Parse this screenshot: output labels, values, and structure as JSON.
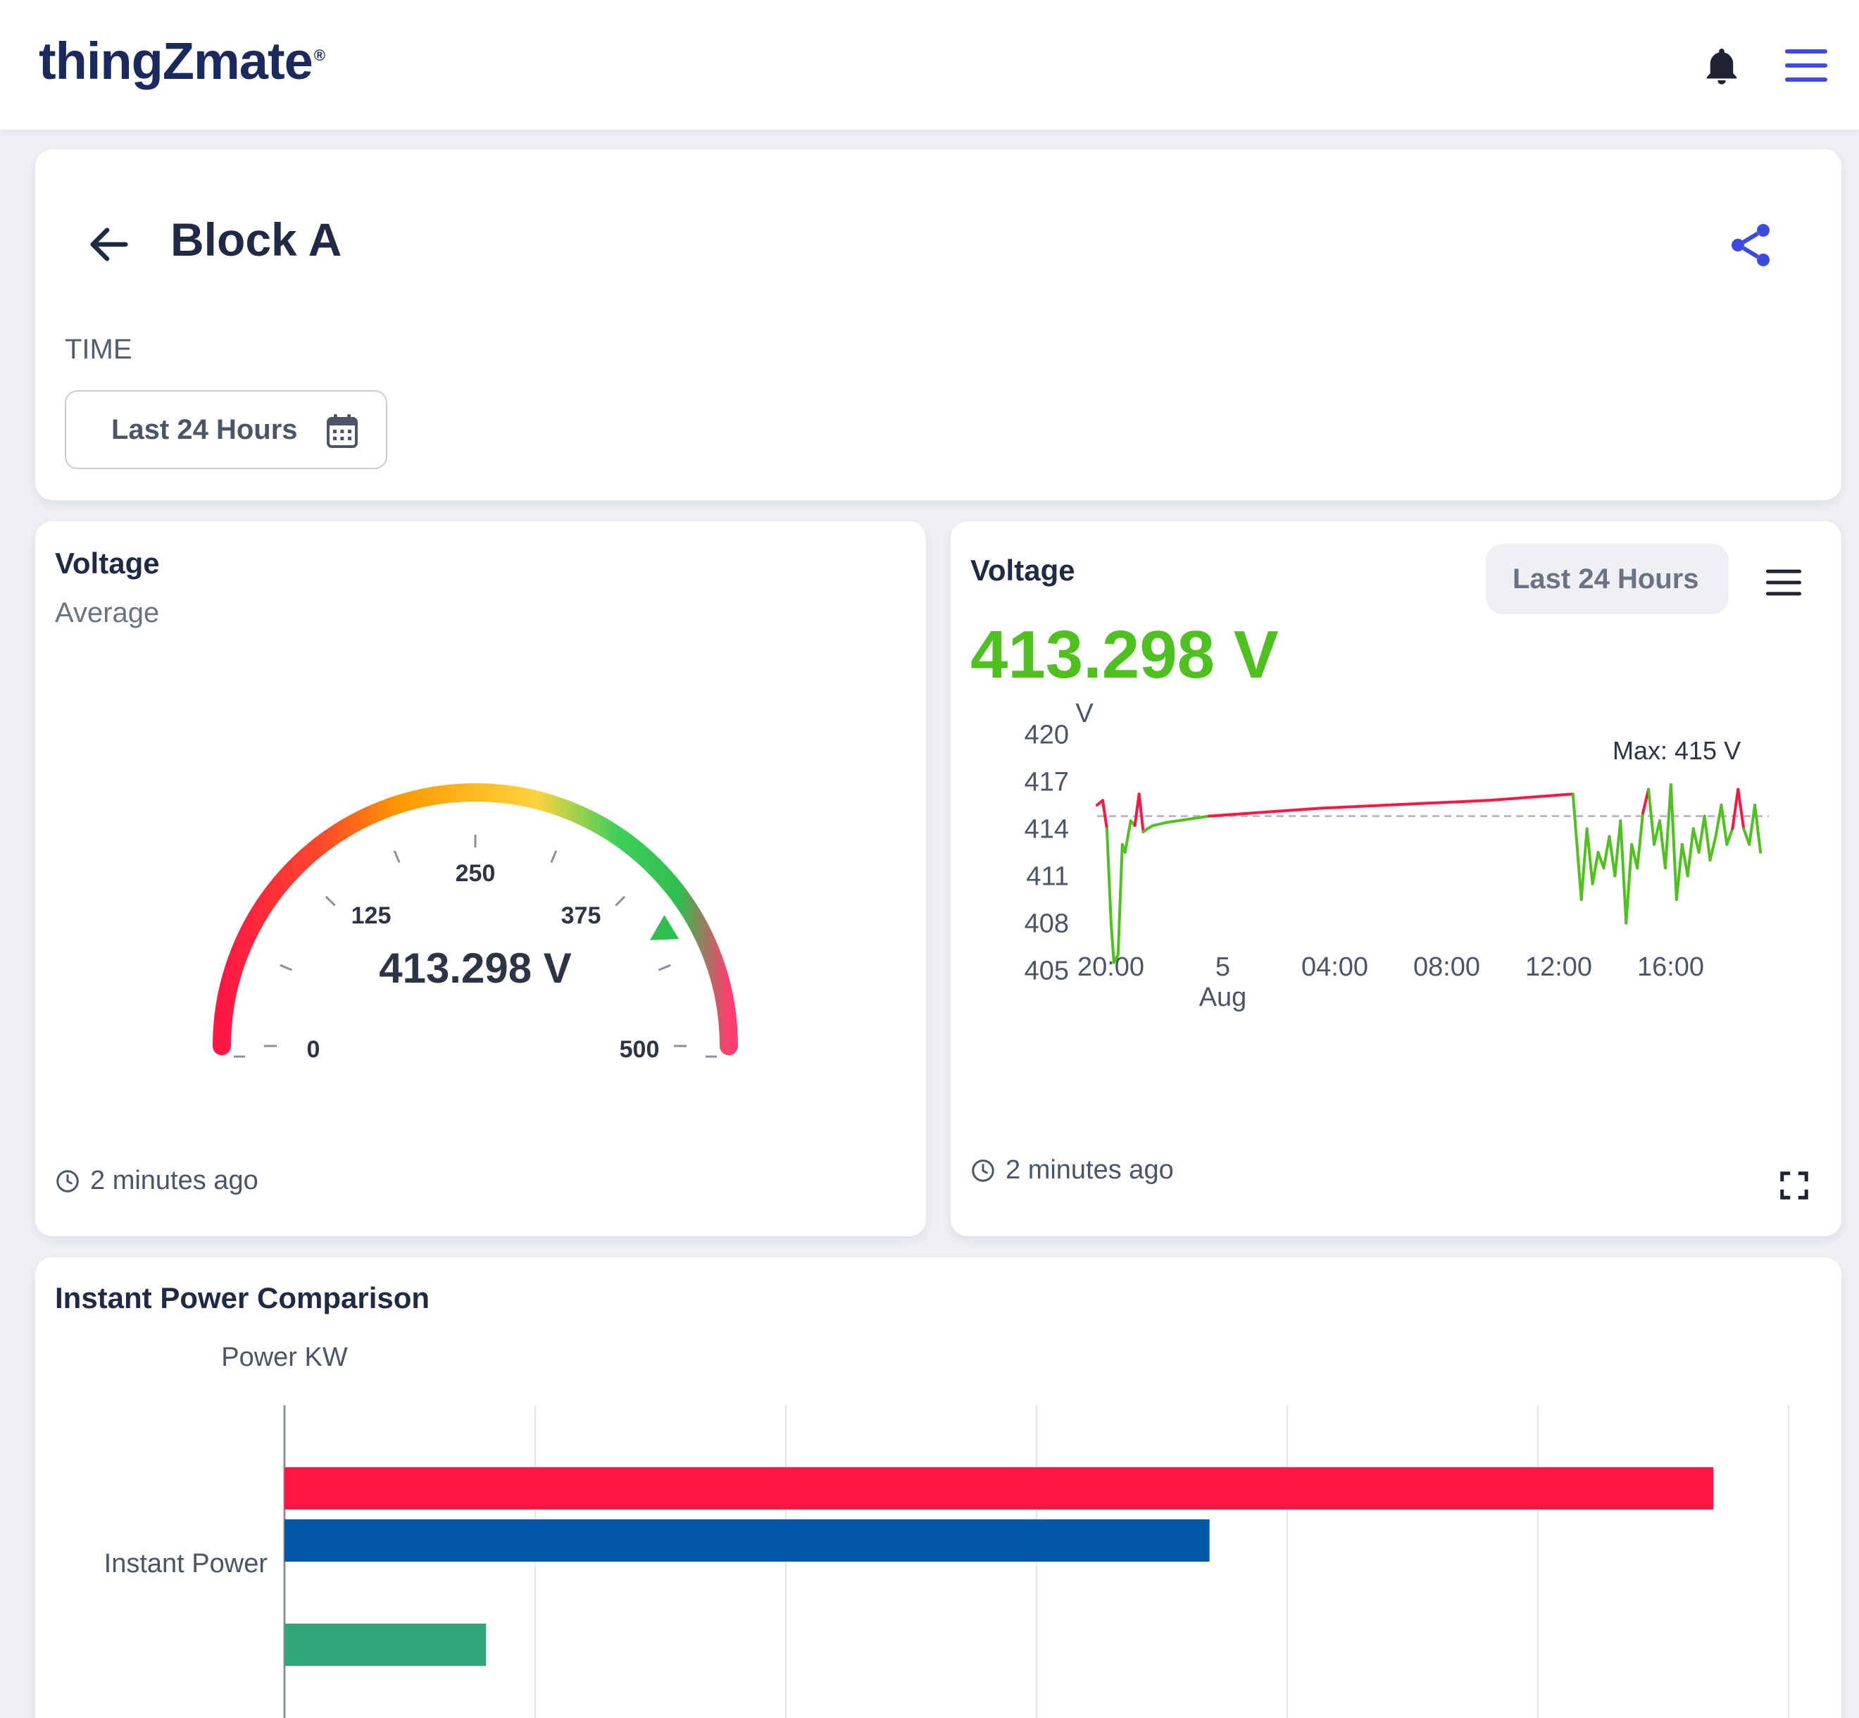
{
  "app": {
    "logo": "thingZmate",
    "logo_mark": "®"
  },
  "header": {
    "title": "Block A",
    "time_label": "TIME",
    "time_range": "Last 24 Hours"
  },
  "colors": {
    "accent": "#3d4ce0",
    "green": "#4fc11f",
    "red": "#ff1744",
    "blue": "#0059a8",
    "teal": "#31a67b"
  },
  "gauge_card": {
    "title": "Voltage",
    "subtitle": "Average",
    "value_label": "413.298 V",
    "updated": "2 minutes ago",
    "gauge": {
      "min": 0,
      "max": 500,
      "value": 413.298,
      "ticks": [
        "0",
        "125",
        "250",
        "375",
        "500"
      ]
    }
  },
  "line_card": {
    "title": "Voltage",
    "range": "Last 24 Hours",
    "value_label": "413.298 V",
    "updated": "2 minutes ago",
    "max_label": "Max:  415 V"
  },
  "bar_card": {
    "title": "Instant Power Comparison"
  },
  "chart_data": [
    {
      "type": "line",
      "ylabel": "V",
      "ylim": [
        404,
        421
      ],
      "yticks": [
        "420",
        "417",
        "414",
        "411",
        "408",
        "405"
      ],
      "xticks": [
        "20:00",
        "5",
        "04:00",
        "08:00",
        "12:00",
        "16:00"
      ],
      "xticks_secondary": [
        "",
        "Aug",
        "",
        "",
        "",
        ""
      ],
      "x": [
        0,
        0.2,
        0.35,
        0.5,
        0.6,
        0.75,
        0.9,
        1.0,
        1.2,
        1.35,
        1.5,
        1.65,
        1.8,
        2.0,
        2.5,
        4.0,
        8.0,
        14.0,
        17.0,
        17.3,
        17.5,
        17.7,
        17.9,
        18.1,
        18.3,
        18.5,
        18.7,
        18.9,
        19.1,
        19.3,
        19.5,
        19.7,
        19.9,
        20.1,
        20.3,
        20.5,
        20.7,
        20.9,
        21.1,
        21.3,
        21.5,
        21.7,
        21.9,
        22.1,
        22.3,
        22.5,
        22.7,
        22.9,
        23.1,
        23.3,
        23.5,
        23.7
      ],
      "series": [
        {
          "y": [
            415.5,
            415.8,
            414.0,
            408.0,
            405.5,
            406.0,
            413.0,
            412.5,
            414.5,
            414.2,
            416.2,
            413.8,
            414.0,
            414.2,
            414.4,
            414.8,
            415.3,
            415.8,
            416.2,
            409.5,
            414.0,
            410.5,
            412.5,
            411.5,
            413.5,
            411.0,
            414.5,
            408.0,
            413.0,
            411.5,
            415.0,
            416.5,
            413.0,
            414.5,
            411.5,
            416.8,
            409.5,
            413.0,
            411.0,
            414.0,
            412.5,
            414.8,
            412.0,
            413.5,
            415.5,
            413.0,
            414.0,
            416.5,
            414.0,
            413.0,
            415.5,
            412.5
          ],
          "threshold": 414.8
        }
      ],
      "annotations": [
        "Max:  415 V"
      ]
    },
    {
      "type": "bar",
      "orientation": "horizontal",
      "ylabel": "Power KW",
      "categories": [
        "Instant Power"
      ],
      "series": [
        {
          "color": "#ff1744",
          "values": [
            0.95
          ]
        },
        {
          "color": "#0059a8",
          "values": [
            0.615
          ]
        },
        {
          "color": "#31a67b",
          "values": [
            0.134
          ]
        }
      ],
      "xlim": [
        0,
        1
      ]
    }
  ]
}
